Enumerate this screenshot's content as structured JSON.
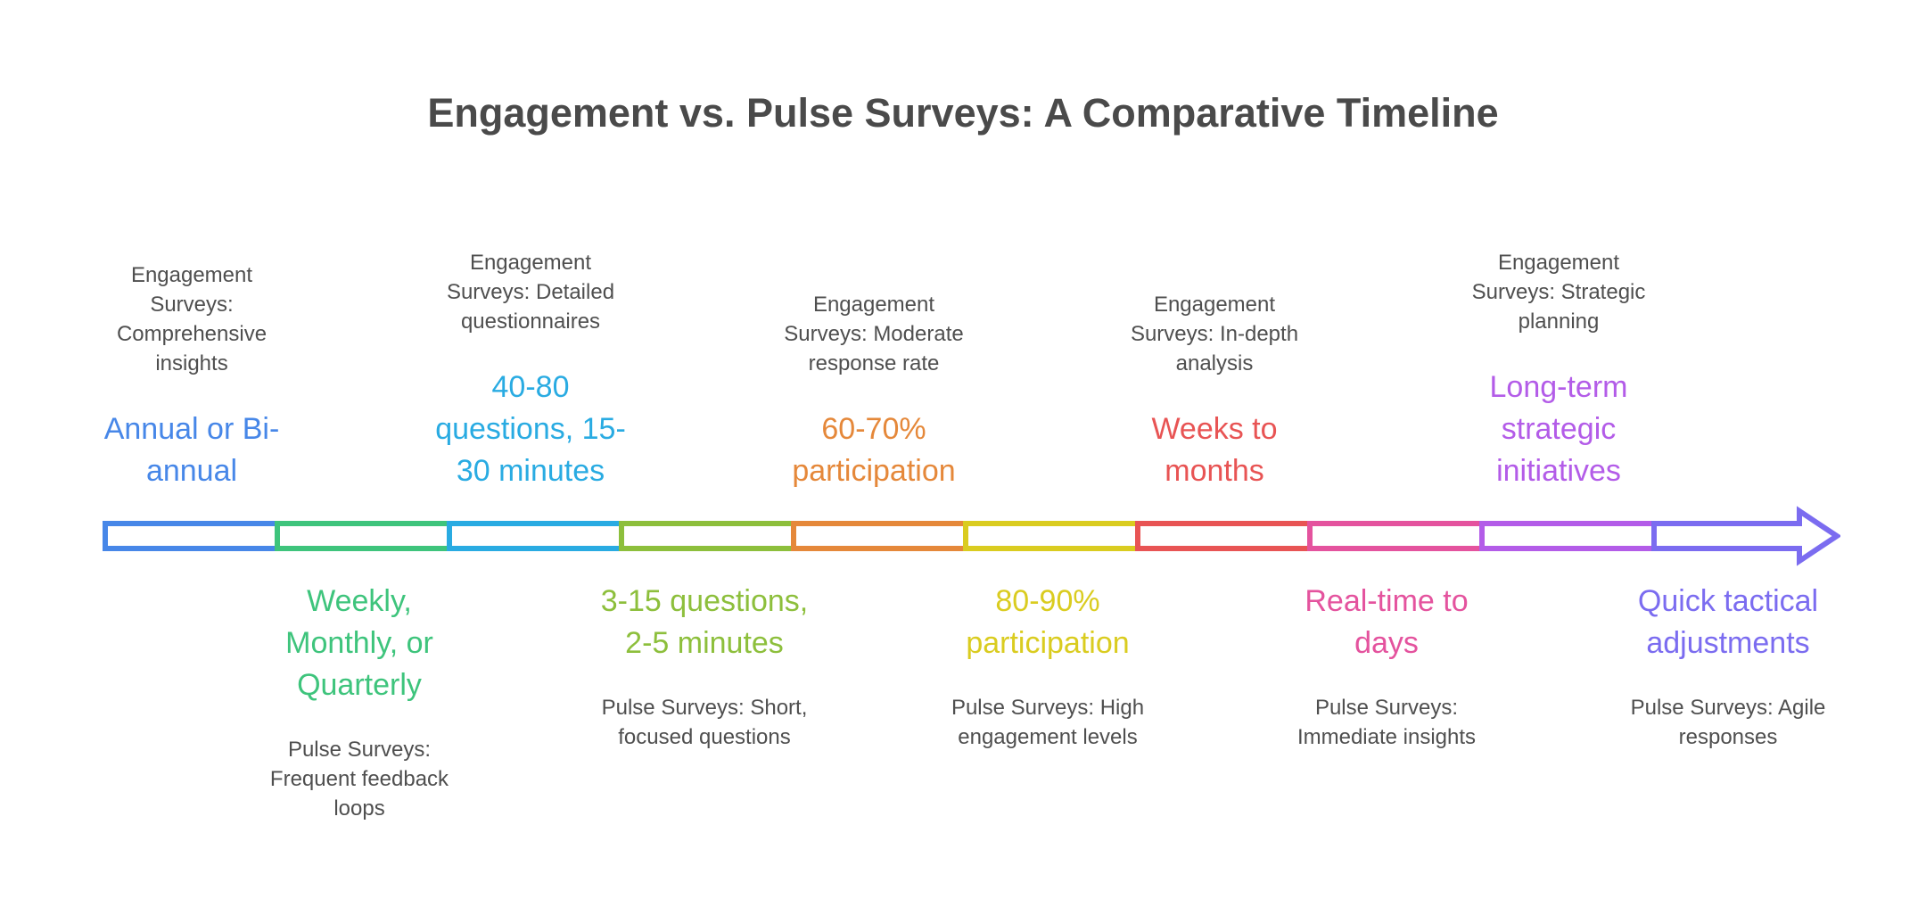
{
  "title": "Engagement vs. Pulse Surveys: A Comparative Timeline",
  "colors": {
    "body_text": "#4f4f4f",
    "title_text": "#4a4a4a"
  },
  "timeline": {
    "segments": [
      "#4787e8",
      "#3ec47c",
      "#29abe2",
      "#8dbf3c",
      "#e5883a",
      "#dacc20",
      "#e85454",
      "#e4539e",
      "#b35ce8"
    ],
    "arrow_color": "#7b6cf0"
  },
  "engagement_items": [
    {
      "description": "Engagement Surveys: Comprehensive insights",
      "highlight": "Annual or Bi-annual",
      "color": "#4787e8"
    },
    {
      "description": "Engagement Surveys: Detailed questionnaires",
      "highlight": "40-80 questions, 15-30 minutes",
      "color": "#29abe2"
    },
    {
      "description": "Engagement Surveys: Moderate response rate",
      "highlight": "60-70% participation",
      "color": "#e5883a"
    },
    {
      "description": "Engagement Surveys: In-depth analysis",
      "highlight": "Weeks to months",
      "color": "#e85454"
    },
    {
      "description": "Engagement Surveys: Strategic planning",
      "highlight": "Long-term strategic initiatives",
      "color": "#b35ce8"
    }
  ],
  "pulse_items": [
    {
      "highlight": "Weekly, Monthly, or Quarterly",
      "description": "Pulse Surveys: Frequent feedback loops",
      "color": "#3ec47c"
    },
    {
      "highlight": "3-15 questions, 2-5 minutes",
      "description": "Pulse Surveys: Short, focused questions",
      "color": "#8dbf3c"
    },
    {
      "highlight": "80-90% participation",
      "description": "Pulse Surveys: High engagement levels",
      "color": "#dacc20"
    },
    {
      "highlight": "Real-time to days",
      "description": "Pulse Surveys: Immediate insights",
      "color": "#e4539e"
    },
    {
      "highlight": "Quick tactical adjustments",
      "description": "Pulse Surveys: Agile responses",
      "color": "#7b6cf0"
    }
  ]
}
